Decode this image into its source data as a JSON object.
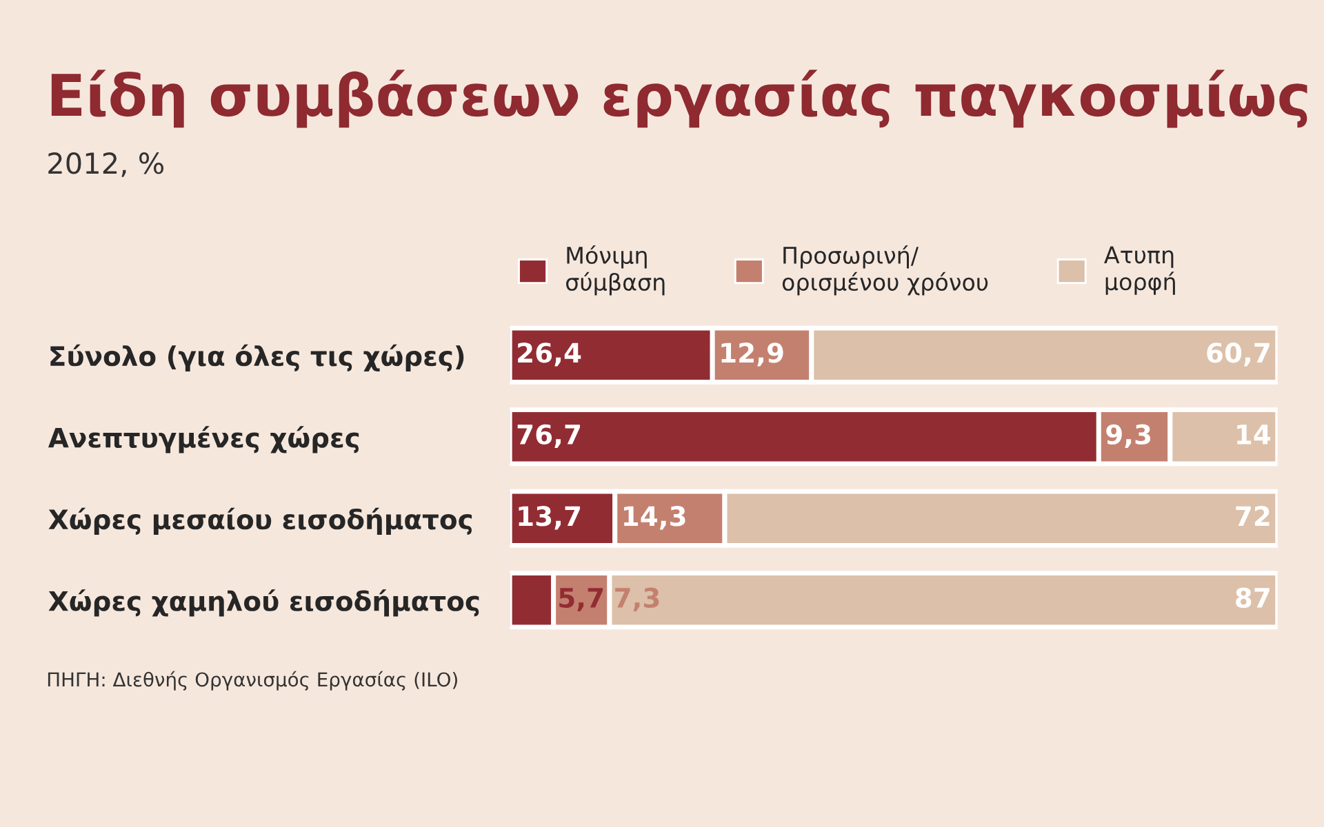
{
  "chart_data": {
    "type": "bar",
    "orientation": "horizontal",
    "stacked": true,
    "title": "Είδη συμβάσεων εργασίας παγκοσμίως",
    "subtitle": "2012, %",
    "categories": [
      "Σύνολο (για όλες τις χώρες)",
      "Ανεπτυγμένες χώρες",
      "Χώρες μεσαίου εισοδήματος",
      "Χώρες χαμηλού εισοδήματος"
    ],
    "series": [
      {
        "name": "Μόνιμη\nσύμβαση",
        "color": "#922c33",
        "values": [
          26.4,
          76.7,
          13.7,
          5.7
        ],
        "value_labels": [
          "26,4",
          "76,7",
          "13,7",
          "5,7"
        ]
      },
      {
        "name": "Προσωρινή/\nορισμένου χρόνου",
        "color": "#c4806f",
        "values": [
          12.9,
          9.3,
          14.3,
          7.3
        ],
        "value_labels": [
          "12,9",
          "9,3",
          "14,3",
          "7,3"
        ]
      },
      {
        "name": "Ατυπη\nμορφή",
        "color": "#dcc0a9",
        "values": [
          60.7,
          14,
          72,
          87
        ],
        "value_labels": [
          "60,7",
          "14",
          "72",
          "87"
        ]
      }
    ],
    "legend": "top",
    "annotations": [
      "ΠΗΓΗ: Διεθνής Οργανισμός Εργασίας (ILO)"
    ]
  }
}
